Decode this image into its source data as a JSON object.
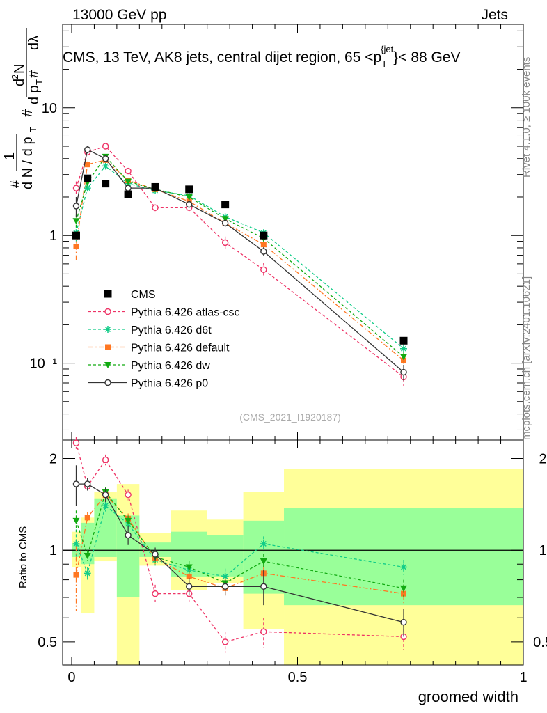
{
  "header": {
    "left": "13000 GeV pp",
    "right": "Jets"
  },
  "side_labels": {
    "rivet": "Rivet 4.1.0, ≥ 100k events",
    "mcplots": "mcplots.cern.ch [arXiv:2401.10621]"
  },
  "chart_data": {
    "type": "scatter",
    "title": "CMS, 13 TeV, AK8 jets, central dijet region, 65 <p_T^{jet}< 88 GeV",
    "xlabel": "groomed width",
    "ylabel_main": "1/(dN/dp_T) d²N/(dp_T dλ)",
    "ylabel_ratio": "Ratio to CMS",
    "watermark": "(CMS_2021_I1920187)",
    "xlim": [
      -0.02,
      1.0
    ],
    "ylim_main": [
      0.025,
      45
    ],
    "ylim_ratio": [
      0.42,
      2.3
    ],
    "main_yscale": "log",
    "ratio_yscale": "log",
    "x_ticks": [
      0,
      0.5,
      1
    ],
    "x_tick_labels": [
      "0",
      "0.5",
      "1"
    ],
    "main_tick_labels": [
      "10⁻¹",
      "1",
      "10"
    ],
    "ratio_ticks": [
      0.5,
      1,
      2
    ],
    "ratio_tick_labels": [
      "0.5",
      "1",
      "2"
    ],
    "legend_position": "bottom-left",
    "bins": [
      [
        0.0,
        0.02
      ],
      [
        0.02,
        0.05
      ],
      [
        0.05,
        0.1
      ],
      [
        0.1,
        0.15
      ],
      [
        0.15,
        0.22
      ],
      [
        0.22,
        0.3
      ],
      [
        0.3,
        0.38
      ],
      [
        0.38,
        0.47
      ],
      [
        0.47,
        1.0
      ]
    ],
    "x": [
      0.01,
      0.035,
      0.075,
      0.125,
      0.185,
      0.26,
      0.34,
      0.425,
      0.735
    ],
    "cms": {
      "name": "CMS",
      "values": [
        1.0,
        2.8,
        2.55,
        2.1,
        2.4,
        2.3,
        1.75,
        1.0,
        0.15
      ]
    },
    "ratio_band_yellow": [
      [
        0.88,
        1.15
      ],
      [
        0.62,
        1.28
      ],
      [
        0.92,
        1.55
      ],
      [
        0.35,
        1.65
      ],
      [
        0.89,
        1.14
      ],
      [
        0.74,
        1.35
      ],
      [
        0.78,
        1.26
      ],
      [
        0.55,
        1.55
      ],
      [
        0.35,
        1.85
      ]
    ],
    "ratio_band_green": [
      [
        0.95,
        1.05
      ],
      [
        0.9,
        1.23
      ],
      [
        0.95,
        1.48
      ],
      [
        0.7,
        1.3
      ],
      [
        0.95,
        1.06
      ],
      [
        0.82,
        1.15
      ],
      [
        0.82,
        1.12
      ],
      [
        0.72,
        1.25
      ],
      [
        0.66,
        1.38
      ]
    ],
    "colors": {
      "atlas_csc": "#ee3366",
      "d6t": "#11cc88",
      "default": "#ff7722",
      "dw": "#11aa11",
      "p0": "#333333",
      "band_yellow": "#ffff99",
      "band_green": "#99ff99"
    },
    "series": [
      {
        "name": "Pythia 6.426 atlas-csc",
        "key": "atlas_csc",
        "dash": "4,3",
        "marker": "open-circle",
        "values": [
          2.35,
          4.5,
          5.0,
          3.2,
          1.65,
          1.65,
          0.88,
          0.54,
          0.078
        ],
        "errors": [
          0.3,
          0.2,
          0.2,
          0.15,
          0.1,
          0.1,
          0.1,
          0.07,
          0.012
        ],
        "ratio": [
          2.25,
          1.62,
          1.98,
          1.52,
          0.72,
          0.72,
          0.5,
          0.54,
          0.52
        ],
        "ratio_errors": [
          0.1,
          0.05,
          0.08,
          0.06,
          0.05,
          0.05,
          0.04,
          0.06,
          0.05
        ]
      },
      {
        "name": "Pythia 6.426 d6t",
        "key": "d6t",
        "dash": "4,3",
        "marker": "star",
        "values": [
          1.05,
          2.35,
          3.5,
          2.55,
          2.25,
          2.05,
          1.4,
          1.05,
          0.13
        ],
        "errors": [
          0.15,
          0.1,
          0.2,
          0.1,
          0.1,
          0.1,
          0.08,
          0.06,
          0.012
        ],
        "ratio": [
          1.05,
          0.84,
          1.4,
          1.22,
          0.93,
          0.86,
          0.82,
          1.05,
          0.88
        ],
        "ratio_errors": [
          0.12,
          0.04,
          0.06,
          0.05,
          0.04,
          0.04,
          0.05,
          0.06,
          0.05
        ]
      },
      {
        "name": "Pythia 6.426 default",
        "key": "default",
        "dash": "7,3,2,3",
        "marker": "filled-square",
        "values": [
          0.82,
          3.6,
          3.9,
          2.7,
          2.3,
          1.85,
          1.25,
          0.85,
          0.105
        ],
        "errors": [
          0.2,
          0.2,
          0.2,
          0.1,
          0.1,
          0.1,
          0.08,
          0.06,
          0.01
        ],
        "ratio": [
          0.83,
          1.28,
          1.52,
          1.27,
          0.94,
          0.82,
          0.75,
          0.84,
          0.72
        ],
        "ratio_errors": [
          0.2,
          0.05,
          0.07,
          0.05,
          0.04,
          0.04,
          0.04,
          0.05,
          0.05
        ]
      },
      {
        "name": "Pythia 6.426 dw",
        "key": "dw",
        "dash": "4,3",
        "marker": "filled-triangle-down",
        "values": [
          1.3,
          2.6,
          4.15,
          2.65,
          2.3,
          2.0,
          1.35,
          0.95,
          0.112
        ],
        "errors": [
          0.15,
          0.1,
          0.2,
          0.1,
          0.1,
          0.1,
          0.08,
          0.06,
          0.01
        ],
        "ratio": [
          1.25,
          0.96,
          1.55,
          1.25,
          0.95,
          0.88,
          0.78,
          0.92,
          0.75
        ],
        "ratio_errors": [
          0.1,
          0.04,
          0.06,
          0.05,
          0.04,
          0.04,
          0.04,
          0.05,
          0.05
        ]
      },
      {
        "name": "Pythia 6.426 p0",
        "key": "p0",
        "dash": "",
        "marker": "open-circle",
        "values": [
          1.7,
          4.7,
          4.0,
          2.35,
          2.35,
          1.75,
          1.25,
          0.75,
          0.085
        ],
        "errors": [
          0.3,
          0.3,
          0.2,
          0.1,
          0.1,
          0.1,
          0.08,
          0.06,
          0.012
        ],
        "ratio": [
          1.65,
          1.65,
          1.52,
          1.12,
          0.97,
          0.76,
          0.76,
          0.76,
          0.58
        ],
        "ratio_errors": [
          0.25,
          0.08,
          0.08,
          0.08,
          0.05,
          0.05,
          0.05,
          0.1,
          0.06
        ]
      }
    ]
  }
}
